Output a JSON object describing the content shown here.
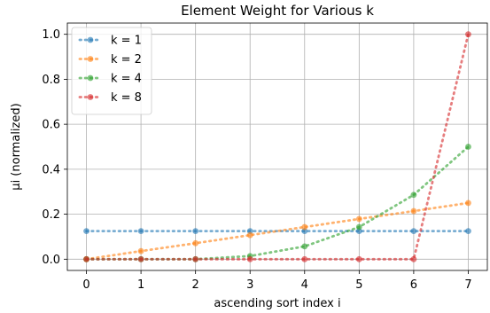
{
  "chart_data": {
    "type": "line",
    "title": "Element Weight for Various k",
    "xlabel": "ascending sort index i",
    "ylabel": "μi (normalized)",
    "x": [
      0,
      1,
      2,
      3,
      4,
      5,
      6,
      7
    ],
    "xlim": [
      -0.35,
      7.35
    ],
    "ylim": [
      -0.05,
      1.05
    ],
    "xticks": [
      "0",
      "1",
      "2",
      "3",
      "4",
      "5",
      "6",
      "7"
    ],
    "yticks": [
      "0.0",
      "0.2",
      "0.4",
      "0.6",
      "0.8",
      "1.0"
    ],
    "grid": true,
    "legend_position": "top-left",
    "series": [
      {
        "name": "k = 1",
        "color": "#1f77b4",
        "values": [
          0.125,
          0.125,
          0.125,
          0.125,
          0.125,
          0.125,
          0.125,
          0.125
        ]
      },
      {
        "name": "k = 2",
        "color": "#ff7f0e",
        "values": [
          0.0,
          0.036,
          0.071,
          0.107,
          0.143,
          0.179,
          0.214,
          0.25
        ]
      },
      {
        "name": "k = 4",
        "color": "#2ca02c",
        "values": [
          0.0,
          0.0,
          0.0,
          0.014,
          0.057,
          0.143,
          0.286,
          0.5
        ]
      },
      {
        "name": "k = 8",
        "color": "#d62728",
        "values": [
          0.0,
          0.0,
          0.0,
          0.0,
          0.0,
          0.0,
          0.0,
          1.0
        ]
      }
    ]
  }
}
